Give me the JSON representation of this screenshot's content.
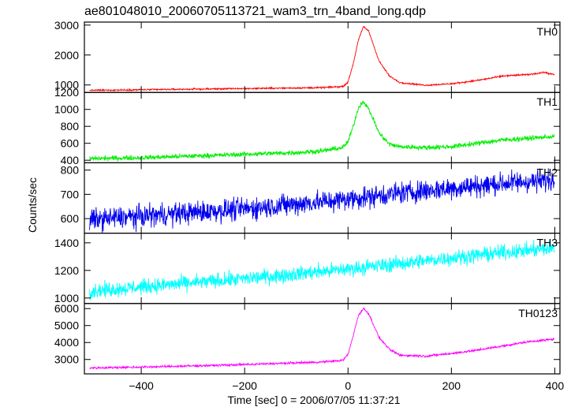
{
  "chart_data": {
    "type": "line",
    "title": "ae801048010_20060705113721_wam3_trn_4band_long.qdp",
    "xlabel": "Time [sec] 0 = 2006/07/05 11:37:21",
    "ylabel": "Counts/sec",
    "xlim": [
      -510,
      410
    ],
    "xticks": [
      {
        "value": -400,
        "label": "−400"
      },
      {
        "value": -200,
        "label": "−200"
      },
      {
        "value": 0,
        "label": "0"
      },
      {
        "value": 200,
        "label": "200"
      },
      {
        "value": 400,
        "label": "400"
      }
    ],
    "grid": false,
    "series": [
      {
        "name": "TH0",
        "color": "#ff0000",
        "ylim": [
          750,
          3100
        ],
        "yticks": [
          {
            "value": 1000,
            "label": "1000"
          },
          {
            "value": 2000,
            "label": "2000"
          },
          {
            "value": 3000,
            "label": "3000"
          }
        ],
        "noise": 18,
        "x": [
          -500,
          -400,
          -300,
          -200,
          -100,
          -50,
          -10,
          0,
          10,
          20,
          30,
          40,
          50,
          60,
          80,
          100,
          150,
          200,
          250,
          300,
          350,
          380,
          400
        ],
        "y": [
          820,
          840,
          860,
          880,
          900,
          910,
          950,
          1100,
          1700,
          2500,
          2950,
          2800,
          2300,
          1800,
          1300,
          1080,
          990,
          1040,
          1150,
          1300,
          1350,
          1420,
          1340
        ]
      },
      {
        "name": "TH1",
        "color": "#00ee00",
        "ylim": [
          370,
          1200
        ],
        "yticks": [
          {
            "value": 400,
            "label": "400"
          },
          {
            "value": 600,
            "label": "600"
          },
          {
            "value": 800,
            "label": "800"
          },
          {
            "value": 1000,
            "label": "1000"
          },
          {
            "value": 1200,
            "label": "1200"
          }
        ],
        "noise": 20,
        "x": [
          -500,
          -400,
          -300,
          -200,
          -100,
          -50,
          -10,
          0,
          10,
          20,
          30,
          40,
          50,
          60,
          80,
          100,
          150,
          200,
          250,
          300,
          350,
          400
        ],
        "y": [
          420,
          430,
          450,
          470,
          490,
          510,
          550,
          620,
          800,
          1020,
          1100,
          1000,
          870,
          720,
          590,
          560,
          550,
          560,
          600,
          640,
          660,
          680
        ]
      },
      {
        "name": "TH2",
        "color": "#0000ee",
        "ylim": [
          540,
          830
        ],
        "yticks": [
          {
            "value": 600,
            "label": "600"
          },
          {
            "value": 700,
            "label": "700"
          },
          {
            "value": 800,
            "label": "800"
          }
        ],
        "noise": 32,
        "x": [
          -500,
          -400,
          -300,
          -200,
          -100,
          0,
          100,
          200,
          300,
          400
        ],
        "y": [
          595,
          610,
          625,
          640,
          660,
          680,
          705,
          725,
          745,
          760
        ]
      },
      {
        "name": "TH3",
        "color": "#00ffff",
        "ylim": [
          960,
          1470
        ],
        "yticks": [
          {
            "value": 1000,
            "label": "1000"
          },
          {
            "value": 1200,
            "label": "1200"
          },
          {
            "value": 1400,
            "label": "1400"
          }
        ],
        "noise": 38,
        "x": [
          -500,
          -400,
          -300,
          -200,
          -100,
          0,
          100,
          200,
          300,
          400
        ],
        "y": [
          1050,
          1080,
          1110,
          1140,
          1175,
          1210,
          1250,
          1290,
          1330,
          1360
        ]
      },
      {
        "name": "TH0123",
        "color": "#ff00ff",
        "ylim": [
          2150,
          6300
        ],
        "yticks": [
          {
            "value": 3000,
            "label": "3000"
          },
          {
            "value": 4000,
            "label": "4000"
          },
          {
            "value": 5000,
            "label": "5000"
          },
          {
            "value": 6000,
            "label": "6000"
          }
        ],
        "noise": 45,
        "x": [
          -500,
          -400,
          -300,
          -200,
          -100,
          -50,
          -10,
          0,
          10,
          20,
          30,
          40,
          50,
          60,
          80,
          100,
          150,
          200,
          250,
          300,
          350,
          400
        ],
        "y": [
          2500,
          2550,
          2620,
          2700,
          2800,
          2850,
          2950,
          3300,
          4400,
          5600,
          6000,
          5700,
          5000,
          4300,
          3600,
          3250,
          3200,
          3350,
          3550,
          3800,
          4050,
          4200
        ]
      }
    ]
  }
}
